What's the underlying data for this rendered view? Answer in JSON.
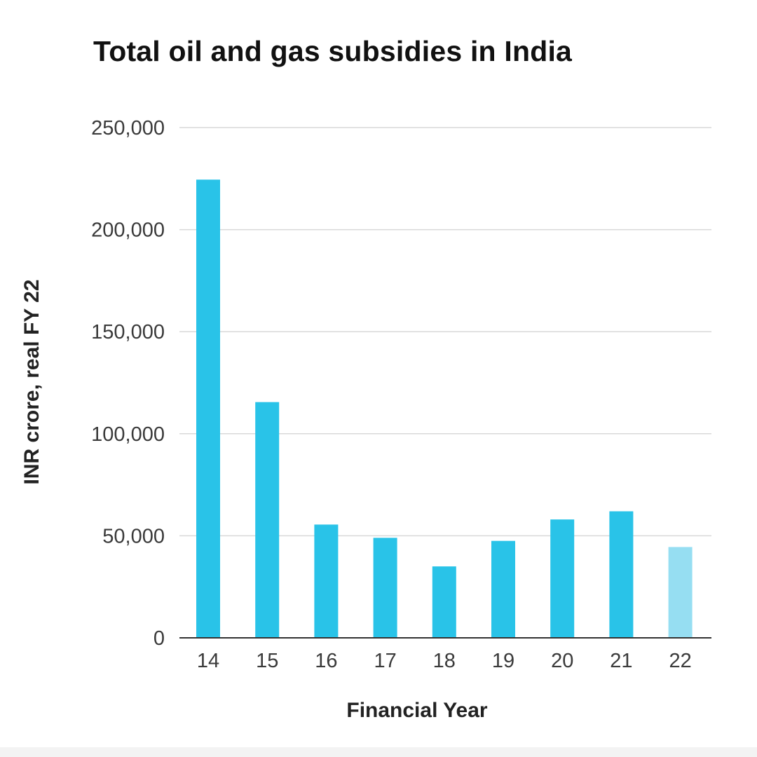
{
  "chart_data": {
    "type": "bar",
    "title": "Total oil and gas subsidies in India",
    "xlabel": "Financial Year",
    "ylabel": "INR crore, real FY 22",
    "categories": [
      "14",
      "15",
      "16",
      "17",
      "18",
      "19",
      "20",
      "21",
      "22"
    ],
    "values": [
      224500,
      115500,
      55500,
      49000,
      35000,
      47500,
      58000,
      62000,
      44500
    ],
    "highlight_last": true,
    "ylim": [
      0,
      250000
    ],
    "yticks": [
      "0",
      "50,000",
      "100,000",
      "150,000",
      "200,000",
      "250,000"
    ],
    "ytick_values": [
      0,
      50000,
      100000,
      150000,
      200000,
      250000
    ],
    "grid": true,
    "legend": "none",
    "colors": {
      "bar": "#29c3e8",
      "bar_highlight": "#96def2",
      "grid": "#d9d9d9",
      "axis": "#333333"
    }
  }
}
